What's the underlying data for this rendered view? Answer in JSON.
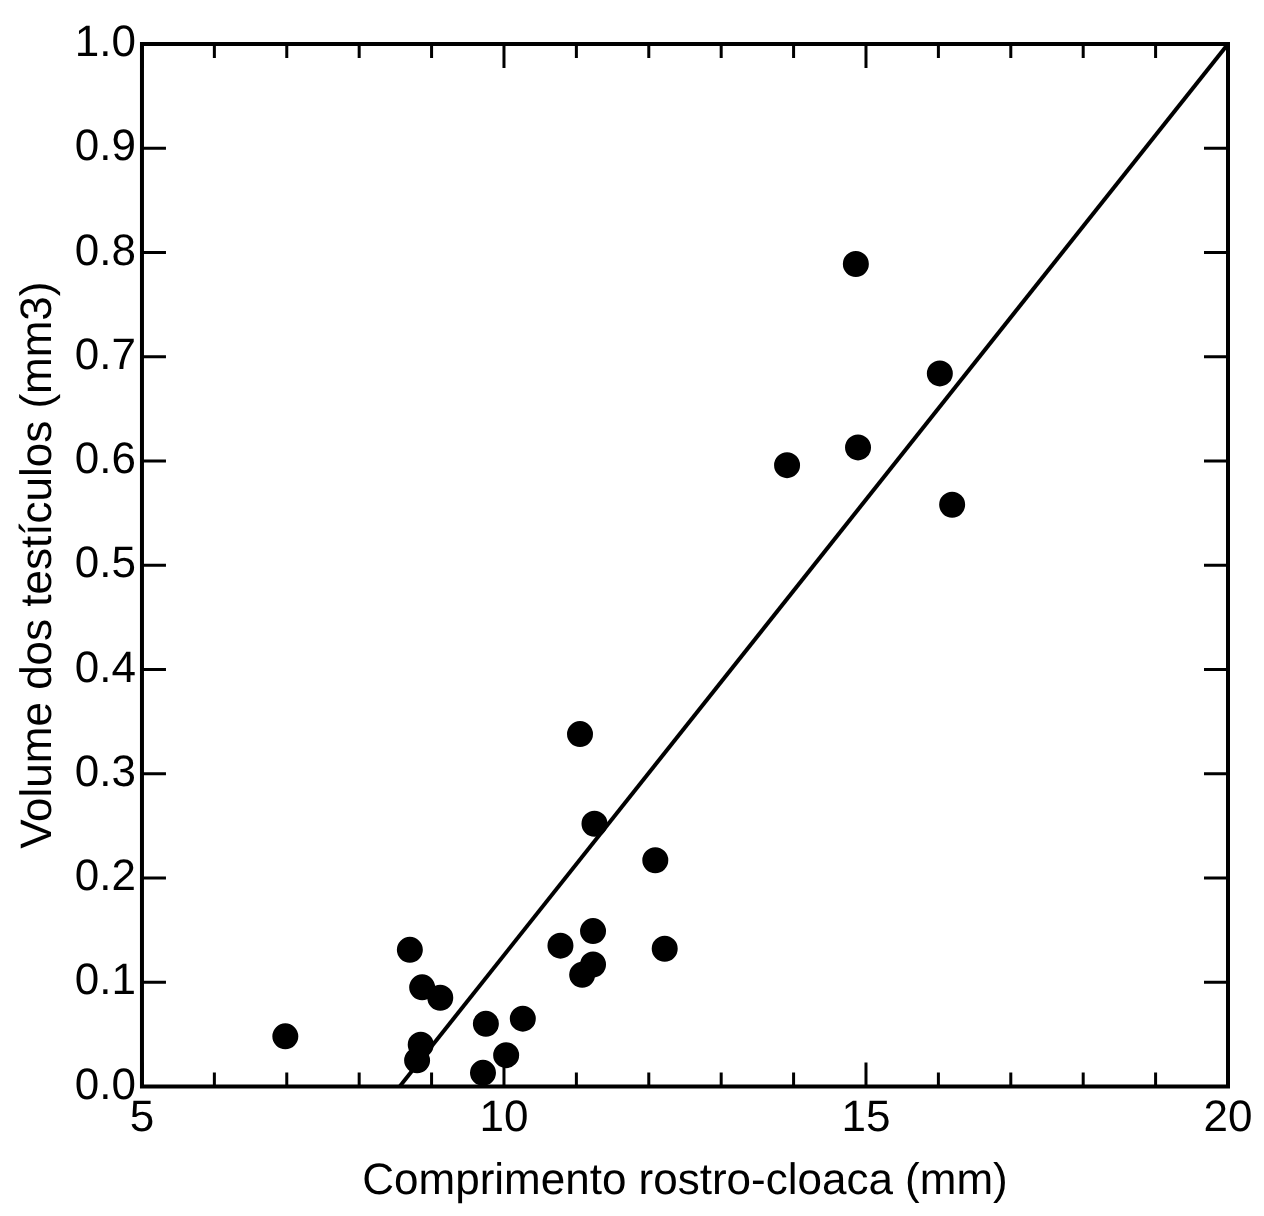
{
  "chart_data": {
    "type": "scatter",
    "xlabel": "Comprimento rostro-cloaca (mm)",
    "ylabel": "Volume dos testículos (mm3)",
    "xlim": [
      5,
      20
    ],
    "ylim": [
      0,
      1
    ],
    "xticks": [
      5,
      {
        "value": 6,
        "label": null
      },
      {
        "value": 7,
        "label": null
      },
      {
        "value": 8,
        "label": null
      },
      {
        "value": 9,
        "label": null
      },
      10,
      {
        "value": 11,
        "label": null
      },
      {
        "value": 12,
        "label": null
      },
      {
        "value": 13,
        "label": null
      },
      {
        "value": 14,
        "label": null
      },
      15,
      {
        "value": 16,
        "label": null
      },
      {
        "value": 17,
        "label": null
      },
      {
        "value": 18,
        "label": null
      },
      {
        "value": 19,
        "label": null
      },
      20
    ],
    "yticks": [
      {
        "value": 0,
        "label": "0.0"
      },
      {
        "value": 0.1,
        "label": "0.1"
      },
      {
        "value": 0.2,
        "label": "0.2"
      },
      {
        "value": 0.3,
        "label": "0.3"
      },
      {
        "value": 0.4,
        "label": "0.4"
      },
      {
        "value": 0.5,
        "label": "0.5"
      },
      {
        "value": 0.6,
        "label": "0.6"
      },
      {
        "value": 0.7,
        "label": "0.7"
      },
      {
        "value": 0.8,
        "label": "0.8"
      },
      {
        "value": 0.9,
        "label": "0.9"
      },
      {
        "value": 1,
        "label": "1.0"
      }
    ],
    "grid": false,
    "legend": false,
    "marker": "circle",
    "series": [
      {
        "color": "#000000",
        "x": [
          6.98,
          8.7,
          8.87,
          9.12,
          8.85,
          8.8,
          9.75,
          9.71,
          10.03,
          10.26,
          10.78,
          11.05,
          11.25,
          11.23,
          11.08,
          11.23,
          12.09,
          12.22,
          14.86,
          16.02,
          13.91,
          14.89,
          16.19
        ],
        "values": [
          0.048,
          0.131,
          0.095,
          0.085,
          0.04,
          0.025,
          0.06,
          0.013,
          0.03,
          0.065,
          0.135,
          0.338,
          0.252,
          0.149,
          0.107,
          0.117,
          0.217,
          0.132,
          0.789,
          0.684,
          0.596,
          0.613,
          0.558
        ]
      },
      {
        "type": "line",
        "color": "#000000",
        "x": [
          8.56,
          20
        ],
        "values": [
          0,
          1
        ],
        "marker": "none",
        "line_style": "solid"
      }
    ]
  }
}
